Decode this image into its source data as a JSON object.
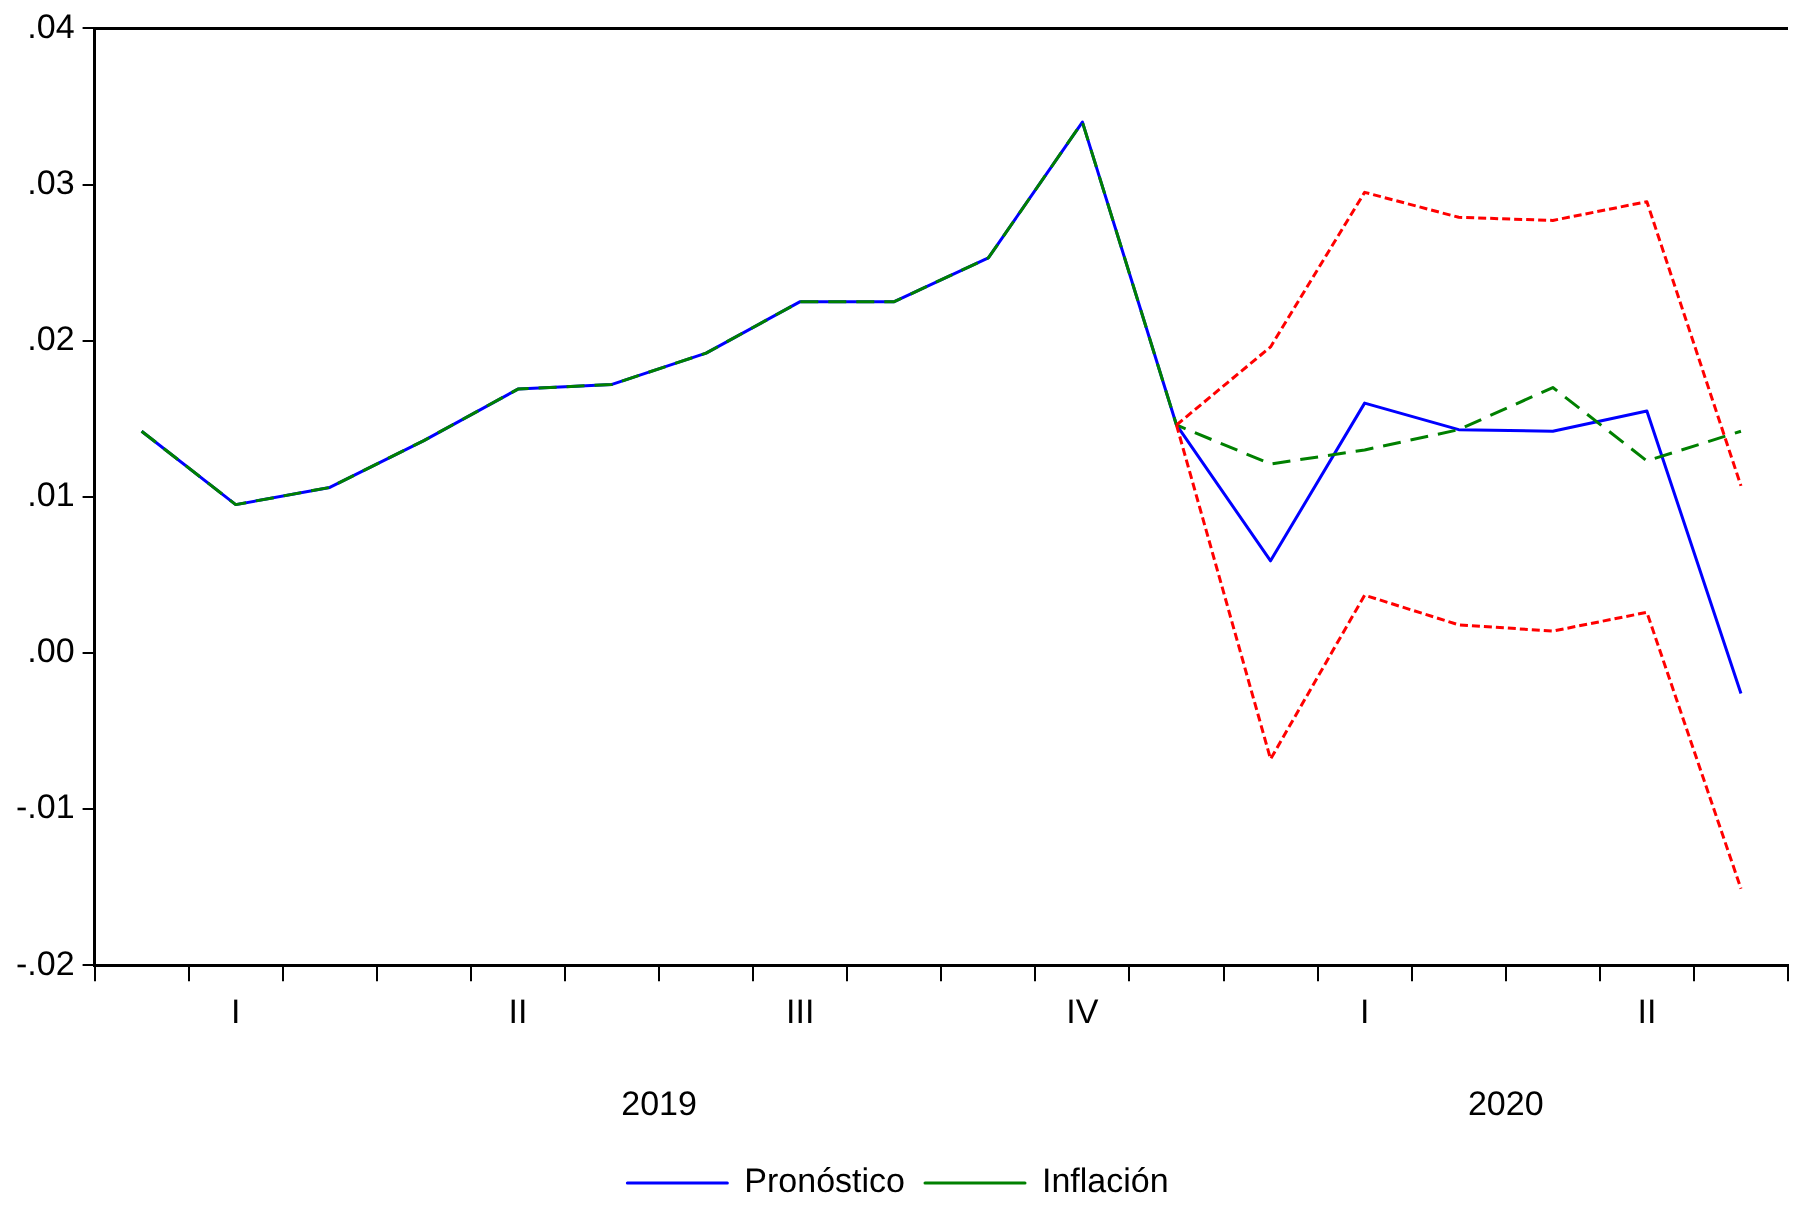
{
  "chart_data": {
    "type": "line",
    "categories": [
      null,
      "I",
      null,
      null,
      "II",
      null,
      null,
      "III",
      null,
      null,
      "IV",
      null,
      null,
      "I",
      null,
      null,
      "II",
      null
    ],
    "annotations": [
      "2019",
      "2020"
    ],
    "series": [
      {
        "name": "Pronóstico",
        "color": "#0000ff",
        "line_style": "solid",
        "values": [
          0.0142,
          0.0095,
          0.0106,
          0.0136,
          0.0169,
          0.0172,
          0.0192,
          0.0225,
          0.0225,
          0.0253,
          0.034,
          0.0146,
          0.0059,
          0.016,
          0.0143,
          0.0142,
          0.0155,
          -0.0026
        ]
      },
      {
        "name": "Inflación",
        "color": "#008000",
        "line_style": "dashed",
        "values": [
          0.0142,
          0.0095,
          0.0106,
          0.0136,
          0.0169,
          0.0172,
          0.0192,
          0.0225,
          0.0225,
          0.0253,
          0.034,
          0.0146,
          0.0121,
          0.013,
          0.0143,
          0.017,
          0.0123,
          0.0142
        ]
      },
      {
        "color": "#ff0000",
        "line_style": "dotted",
        "values": [
          null,
          null,
          null,
          null,
          null,
          null,
          null,
          null,
          null,
          null,
          null,
          0.0146,
          0.0196,
          0.0295,
          0.0279,
          0.0277,
          0.0289,
          0.0107
        ]
      },
      {
        "color": "#ff0000",
        "line_style": "dotted",
        "values": [
          null,
          null,
          null,
          null,
          null,
          null,
          null,
          null,
          null,
          null,
          null,
          0.0146,
          -0.0068,
          0.0037,
          0.0018,
          0.0014,
          0.0026,
          -0.0151
        ]
      }
    ],
    "ylim": [
      -0.02,
      0.04
    ],
    "yticks": [
      {
        "value": -0.02,
        "label": "-.02"
      },
      {
        "value": -0.01,
        "label": "-.01"
      },
      {
        "value": 0,
        "label": ".00"
      },
      {
        "value": 0.01,
        "label": ".01"
      },
      {
        "value": 0.02,
        "label": ".02"
      },
      {
        "value": 0.03,
        "label": ".03"
      },
      {
        "value": 0.04,
        "label": ".04"
      }
    ],
    "grid": false,
    "legend": "bottom"
  }
}
